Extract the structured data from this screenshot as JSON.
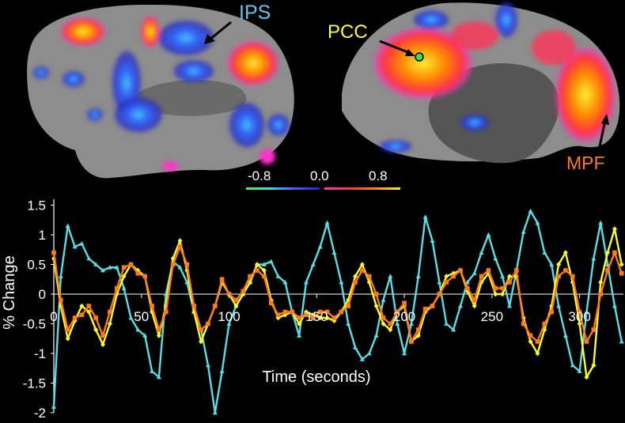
{
  "brain_labels": {
    "ips": {
      "text": "IPS",
      "color": "#5ec8f0"
    },
    "pcc": {
      "text": "PCC",
      "color": "#ffff33"
    },
    "mpf": {
      "text": "MPF",
      "color": "#ff7a1a"
    }
  },
  "colorbar": {
    "neg_label": "-0.8",
    "zero_label": "0.0",
    "pos_label": "0.8",
    "neg_colors": [
      "#33ff33",
      "#33ddee",
      "#3366ff",
      "#2222cc"
    ],
    "pos_colors": [
      "#ff33cc",
      "#ff3333",
      "#ff8800",
      "#ffee33"
    ]
  },
  "chart_data": {
    "type": "line",
    "xlabel": "Time (seconds)",
    "ylabel": "% Change",
    "xlim": [
      0,
      325
    ],
    "ylim": [
      -2,
      1.6
    ],
    "xticks": [
      "0",
      "50",
      "100",
      "150",
      "200",
      "250",
      "300"
    ],
    "xtick_values": [
      0,
      50,
      100,
      150,
      200,
      250,
      300
    ],
    "yticks": [
      "1.5",
      "1",
      "0.5",
      "0",
      "-0.5",
      "-1",
      "-1.5",
      "-2"
    ],
    "ytick_values": [
      1.5,
      1,
      0.5,
      0,
      -0.5,
      -1,
      -1.5,
      -2
    ],
    "x": [
      0,
      4,
      8,
      12,
      16,
      20,
      24,
      28,
      32,
      36,
      40,
      44,
      48,
      52,
      56,
      60,
      64,
      68,
      72,
      76,
      80,
      84,
      88,
      92,
      96,
      100,
      104,
      108,
      112,
      116,
      120,
      124,
      128,
      132,
      136,
      140,
      144,
      148,
      152,
      156,
      160,
      164,
      168,
      172,
      176,
      180,
      184,
      188,
      192,
      196,
      200,
      204,
      208,
      212,
      216,
      220,
      224,
      228,
      232,
      236,
      240,
      244,
      248,
      252,
      256,
      260,
      264,
      268,
      272,
      276,
      280,
      284,
      288,
      292,
      296,
      300,
      304,
      308,
      312,
      316,
      320,
      324
    ],
    "series": [
      {
        "color": "#55e0e8",
        "marker": "triangle",
        "values": [
          -1.9,
          0.3,
          1.15,
          0.8,
          0.85,
          0.6,
          0.5,
          0.4,
          0.45,
          0.45,
          0.1,
          -0.4,
          -0.6,
          -0.7,
          -1.3,
          -1.4,
          0.0,
          0.55,
          0.45,
          0.2,
          -0.3,
          -0.6,
          -1.2,
          -2.0,
          -1.3,
          -0.5,
          -0.2,
          0.0,
          0.2,
          0.5,
          0.5,
          0.55,
          0.3,
          0.2,
          -0.3,
          -0.7,
          0.2,
          0.5,
          0.8,
          1.2,
          0.7,
          0.2,
          -0.5,
          -0.9,
          -1.1,
          -1.0,
          -0.7,
          -0.1,
          0.3,
          -0.5,
          -1.0,
          -0.5,
          0.3,
          1.3,
          0.9,
          0.2,
          -0.5,
          -0.6,
          -0.2,
          0.2,
          0.35,
          0.7,
          1.0,
          0.6,
          0.3,
          -0.2,
          0.4,
          1.05,
          1.4,
          1.2,
          0.7,
          0.5,
          -0.2,
          -0.7,
          -1.2,
          -1.3,
          -0.3,
          0.6,
          1.2,
          0.5,
          -0.2,
          -0.8
        ]
      },
      {
        "color": "#ffff22",
        "marker": "diamond",
        "values": [
          0.6,
          -0.2,
          -0.75,
          -0.45,
          -0.2,
          -0.3,
          -0.6,
          -0.85,
          -0.5,
          0.0,
          0.3,
          0.5,
          0.4,
          0.3,
          -0.3,
          -0.7,
          -0.2,
          0.6,
          0.9,
          0.4,
          -0.3,
          -0.8,
          -0.5,
          -0.2,
          0.2,
          0.0,
          -0.2,
          0.0,
          0.2,
          0.5,
          0.4,
          -0.1,
          -0.4,
          -0.35,
          -0.3,
          -0.5,
          -0.3,
          -0.35,
          -0.4,
          -0.4,
          -0.45,
          -0.3,
          -0.1,
          0.3,
          0.5,
          0.2,
          -0.2,
          -0.5,
          -0.6,
          -0.3,
          -0.2,
          -0.8,
          -0.7,
          -0.3,
          -0.2,
          0.0,
          0.3,
          0.35,
          0.4,
          0.05,
          -0.2,
          0.2,
          0.35,
          0.0,
          0.0,
          0.3,
          0.3,
          -0.4,
          -0.8,
          -1.0,
          -0.6,
          -0.2,
          0.5,
          0.7,
          0.2,
          -0.5,
          -1.4,
          -1.2,
          0.2,
          0.7,
          1.1,
          0.5
        ]
      },
      {
        "color": "#ff7a1a",
        "marker": "square",
        "values": [
          0.7,
          -0.1,
          -0.6,
          -0.4,
          -0.35,
          -0.2,
          -0.4,
          -0.7,
          -0.3,
          0.1,
          0.45,
          0.5,
          0.35,
          0.3,
          -0.2,
          -0.6,
          -0.3,
          0.5,
          0.8,
          0.5,
          -0.2,
          -0.6,
          -0.5,
          -0.2,
          0.25,
          0.0,
          -0.1,
          0.05,
          0.3,
          0.4,
          0.3,
          -0.15,
          -0.35,
          -0.3,
          -0.3,
          -0.4,
          -0.35,
          -0.4,
          -0.3,
          -0.3,
          -0.4,
          -0.3,
          -0.2,
          0.2,
          0.4,
          0.3,
          0.0,
          -0.4,
          -0.5,
          -0.3,
          -0.15,
          -0.8,
          -0.6,
          -0.25,
          -0.2,
          0.0,
          0.2,
          0.3,
          0.4,
          0.1,
          -0.1,
          0.3,
          0.4,
          0.1,
          0.1,
          0.2,
          0.4,
          -0.5,
          -0.7,
          -0.8,
          -0.5,
          -0.3,
          0.3,
          0.4,
          0.3,
          -0.3,
          -0.8,
          -0.6,
          0.0,
          0.4,
          0.7,
          0.35
        ]
      }
    ]
  }
}
